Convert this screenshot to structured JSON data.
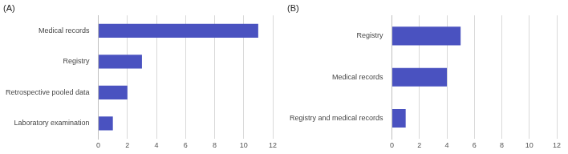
{
  "chart_data": [
    {
      "type": "bar",
      "orientation": "horizontal",
      "title": "(A)",
      "categories": [
        "Medical records",
        "Registry",
        "Retrospective pooled data",
        "Laboratory examination"
      ],
      "values": [
        11,
        3,
        2,
        1
      ],
      "color": "#4a52c0",
      "xlim": [
        0,
        12
      ],
      "xticks": [
        0,
        2,
        4,
        6,
        8,
        10,
        12
      ],
      "grid": true
    },
    {
      "type": "bar",
      "orientation": "horizontal",
      "title": "(B)",
      "categories": [
        "Registry",
        "Medical records",
        "Registry and medical records"
      ],
      "values": [
        5,
        4,
        1
      ],
      "color": "#4a52c0",
      "xlim": [
        0,
        12
      ],
      "xticks": [
        0,
        2,
        4,
        6,
        8,
        10,
        12
      ],
      "grid": true
    }
  ]
}
